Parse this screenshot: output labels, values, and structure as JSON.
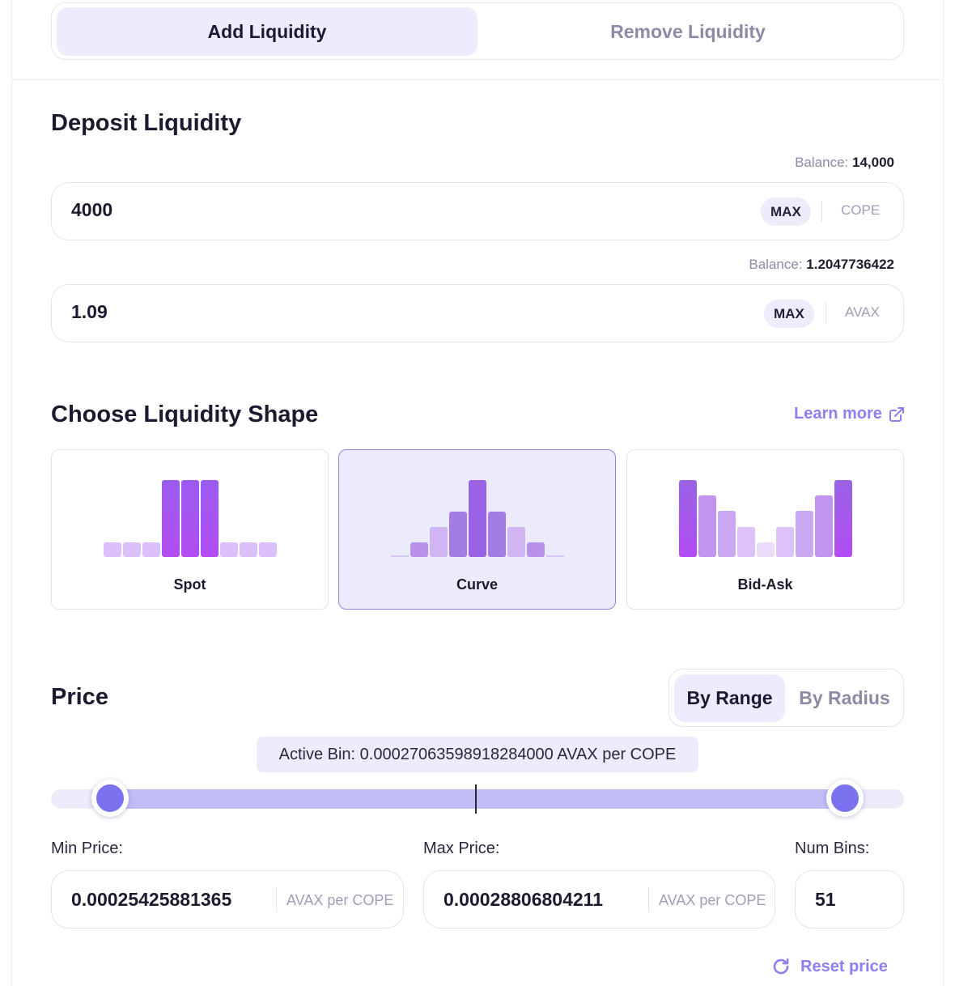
{
  "tabs": {
    "add": "Add Liquidity",
    "remove": "Remove Liquidity"
  },
  "deposit": {
    "title": "Deposit Liquidity",
    "token_a": {
      "balance_label": "Balance:",
      "balance": "14,000",
      "value": "4000",
      "max": "MAX",
      "symbol": "COPE"
    },
    "token_b": {
      "balance_label": "Balance:",
      "balance": "1.2047736422",
      "value": "1.09",
      "max": "MAX",
      "symbol": "AVAX"
    }
  },
  "shape": {
    "title": "Choose Liquidity Shape",
    "learn_more": "Learn more",
    "options": [
      {
        "label": "Spot",
        "selected": false
      },
      {
        "label": "Curve",
        "selected": true
      },
      {
        "label": "Bid-Ask",
        "selected": false
      }
    ]
  },
  "price": {
    "title": "Price",
    "modes": {
      "by_range": "By Range",
      "by_radius": "By Radius",
      "selected": "By Range"
    },
    "active_bin": "Active Bin: 0.00027063598918284000 AVAX per COPE",
    "min_label": "Min Price:",
    "max_label": "Max Price:",
    "bins_label": "Num Bins:",
    "min_value": "0.00025425881365",
    "max_value": "0.00028806804211",
    "unit": "AVAX per COPE",
    "num_bins": "51",
    "reset": "Reset price"
  },
  "colors": {
    "accent": "#8b7ff2",
    "bar_strong": "#a855f7",
    "bar_light": "#d8b4fe"
  }
}
